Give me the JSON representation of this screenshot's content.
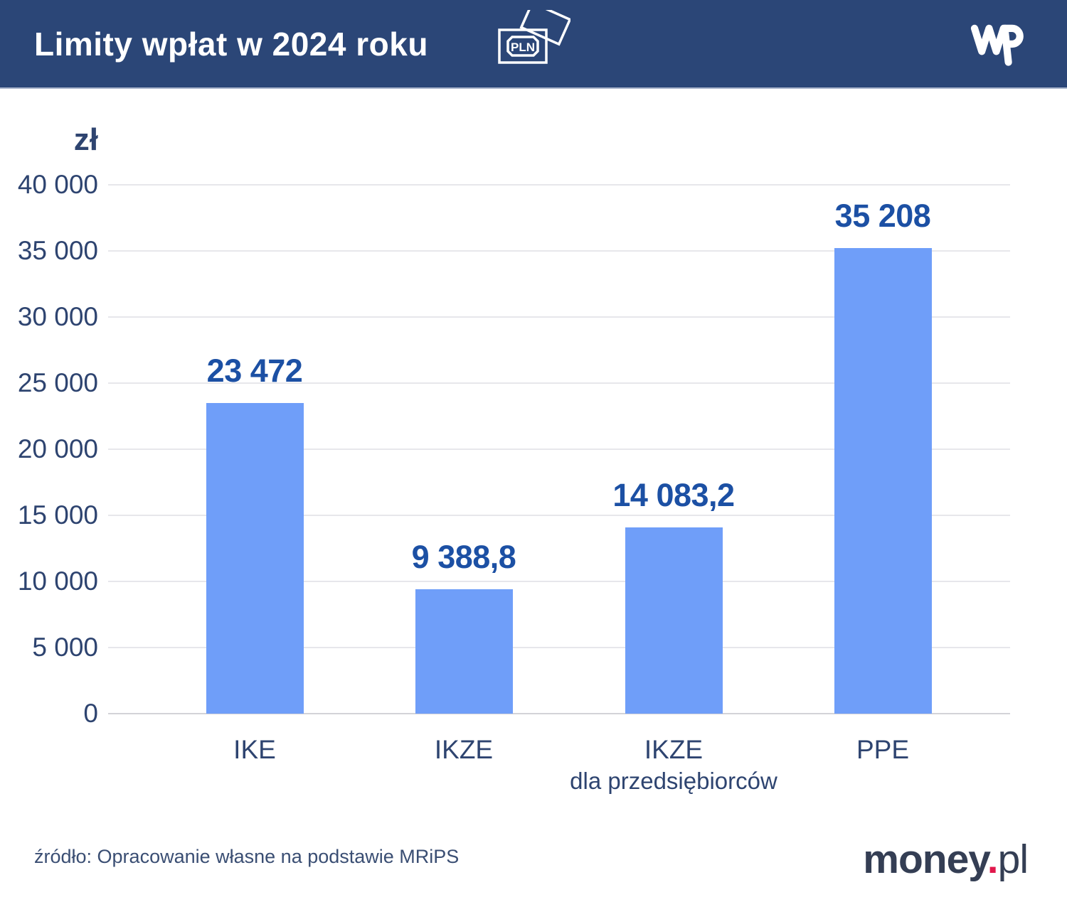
{
  "header": {
    "title": "Limity wpłat w 2024 roku",
    "pln_icon_text": "PLN",
    "wp_logo_name": "wp-logo"
  },
  "footer": {
    "source": "źródło: Opracowanie własne na podstawie MRiPS",
    "brand": {
      "money": "money",
      "dot": ".",
      "pl": "pl"
    }
  },
  "colors": {
    "header_bg": "#2B4677",
    "bar_fill": "#6F9EF9",
    "value_label": "#1C50A4",
    "axis_text": "#2E4470",
    "gridline": "#E7E7EB",
    "baseline": "#D3D3D8",
    "source_text": "#3A4E73",
    "brand_navy": "#343E54",
    "brand_red": "#E1184C"
  },
  "chart_data": {
    "type": "bar",
    "title": "Limity wpłat w 2024 roku",
    "unit_label": "zł",
    "categories": [
      [
        "IKE"
      ],
      [
        "IKZE"
      ],
      [
        "IKZE",
        "dla przedsiębiorców"
      ],
      [
        "PPE"
      ]
    ],
    "values": [
      23472,
      9388.8,
      14083.2,
      35208
    ],
    "value_labels": [
      "23 472",
      "9 388,8",
      "14 083,2",
      "35 208"
    ],
    "ylim": [
      0,
      40000
    ],
    "ytick_values": [
      40000,
      35000,
      30000,
      25000,
      20000,
      15000,
      10000,
      5000,
      0
    ],
    "ytick_labels": [
      "40 000",
      "35 000",
      "30 000",
      "25 000",
      "20 000",
      "15 000",
      "10 000",
      "5 000",
      "0"
    ],
    "grid": "horizontal-only",
    "legend": "none"
  }
}
